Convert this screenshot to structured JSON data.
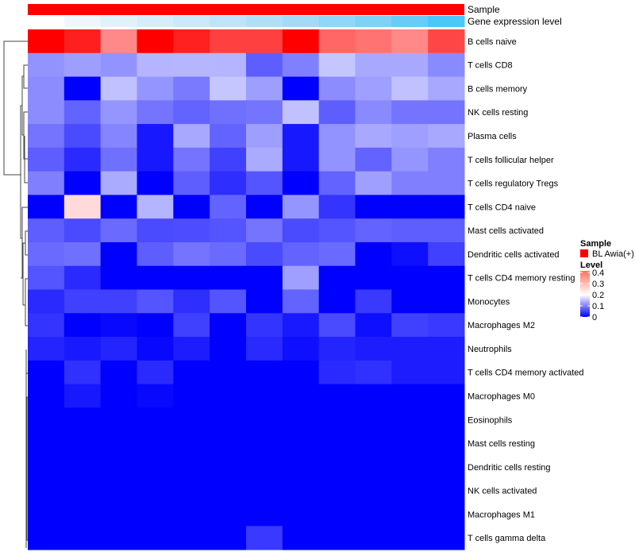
{
  "chart_data": {
    "type": "heatmap",
    "annotations": {
      "sample_label": "Sample",
      "gene_expression_label": "Gene expression level",
      "sample_color": "#ff0000",
      "gene_expression_colors": [
        "#ffffff",
        "#eef7fc",
        "#e2f2fb",
        "#d6eefa",
        "#cae9f9",
        "#bde4f8",
        "#b0e0f8",
        "#a3dbf7",
        "#90d6f7",
        "#7ed1f7",
        "#67ccf8",
        "#4ac8f8"
      ]
    },
    "rows": [
      "B cells naive",
      "T cells CD8",
      "B cells memory",
      "NK cells resting",
      "Plasma cells",
      "T cells follicular helper",
      "T cells regulatory  Tregs",
      "T cells CD4 naive",
      "Mast cells activated",
      "Dendritic cells activated",
      "T cells CD4 memory resting",
      "Monocytes",
      "Macrophages M2",
      "Neutrophils",
      "T cells CD4 memory activated",
      "Macrophages M0",
      "Eosinophils",
      "Mast cells resting",
      "Dendritic cells resting",
      "NK cells activated",
      "Macrophages M1",
      "T cells gamma delta"
    ],
    "n_columns": 12,
    "values": [
      [
        0.4,
        0.376,
        0.293,
        0.4,
        0.375,
        0.35,
        0.35,
        0.4,
        0.32,
        0.31,
        0.293,
        0.345
      ],
      [
        0.115,
        0.124,
        0.115,
        0.141,
        0.143,
        0.141,
        0.074,
        0.1,
        0.155,
        0.132,
        0.132,
        0.108
      ],
      [
        0.11,
        0.0,
        0.151,
        0.117,
        0.096,
        0.155,
        0.124,
        0.0,
        0.11,
        0.125,
        0.151,
        0.132
      ],
      [
        0.11,
        0.078,
        0.117,
        0.091,
        0.078,
        0.088,
        0.091,
        0.151,
        0.074,
        0.108,
        0.091,
        0.091
      ],
      [
        0.091,
        0.058,
        0.104,
        0.019,
        0.132,
        0.078,
        0.124,
        0.019,
        0.115,
        0.132,
        0.125,
        0.132
      ],
      [
        0.074,
        0.033,
        0.088,
        0.019,
        0.091,
        0.05,
        0.133,
        0.019,
        0.115,
        0.078,
        0.117,
        0.1
      ],
      [
        0.1,
        0.0,
        0.133,
        0.0,
        0.074,
        0.036,
        0.067,
        0.0,
        0.078,
        0.125,
        0.1,
        0.1
      ],
      [
        0.0,
        0.229,
        0.0,
        0.141,
        0.0,
        0.078,
        0.0,
        0.117,
        0.041,
        0.0,
        0.0,
        0.0
      ],
      [
        0.074,
        0.058,
        0.083,
        0.058,
        0.06,
        0.067,
        0.091,
        0.058,
        0.067,
        0.078,
        0.074,
        0.074
      ],
      [
        0.083,
        0.088,
        0.0,
        0.074,
        0.091,
        0.083,
        0.058,
        0.078,
        0.083,
        0.0,
        0.012,
        0.05
      ],
      [
        0.067,
        0.033,
        0.0,
        0.0,
        0.0,
        0.0,
        0.0,
        0.125,
        0.0,
        0.0,
        0.0,
        0.0
      ],
      [
        0.033,
        0.05,
        0.05,
        0.067,
        0.036,
        0.067,
        0.0,
        0.078,
        0.0,
        0.045,
        0.0,
        0.0
      ],
      [
        0.041,
        0.0,
        0.006,
        0.0,
        0.05,
        0.0,
        0.041,
        0.02,
        0.058,
        0.012,
        0.05,
        0.045
      ],
      [
        0.028,
        0.02,
        0.028,
        0.006,
        0.022,
        0.0,
        0.033,
        0.012,
        0.028,
        0.022,
        0.022,
        0.022
      ],
      [
        0.0,
        0.038,
        0.0,
        0.033,
        0.0,
        0.0,
        0.0,
        0.0,
        0.033,
        0.038,
        0.022,
        0.022
      ],
      [
        0.0,
        0.019,
        0.0,
        0.006,
        0.0,
        0.0,
        0.0,
        0.0,
        0.0,
        0.0,
        0.0,
        0.0
      ],
      [
        0,
        0,
        0,
        0,
        0,
        0,
        0,
        0,
        0,
        0,
        0,
        0
      ],
      [
        0,
        0,
        0,
        0,
        0,
        0,
        0,
        0,
        0,
        0,
        0,
        0
      ],
      [
        0,
        0,
        0,
        0,
        0,
        0,
        0,
        0,
        0,
        0,
        0,
        0
      ],
      [
        0,
        0,
        0,
        0,
        0,
        0,
        0,
        0,
        0,
        0,
        0,
        0
      ],
      [
        0,
        0,
        0,
        0,
        0,
        0,
        0,
        0,
        0,
        0,
        0,
        0
      ],
      [
        0,
        0,
        0,
        0,
        0,
        0,
        0.045,
        0,
        0,
        0,
        0,
        0
      ]
    ],
    "color_scale": {
      "low": "#0000ff",
      "mid": "#ffffff",
      "high": "#ff0000",
      "domain": [
        0,
        0.2,
        0.4
      ]
    },
    "legend": {
      "sample_title": "Sample",
      "sample_entry": "BL Awia(+)",
      "level_title": "Level",
      "ticks": [
        "0.4",
        "0.3",
        "0.2",
        "0.1",
        "0"
      ],
      "tick_values": [
        0.4,
        0.3,
        0.2,
        0.1,
        0
      ],
      "placement": "right"
    }
  }
}
